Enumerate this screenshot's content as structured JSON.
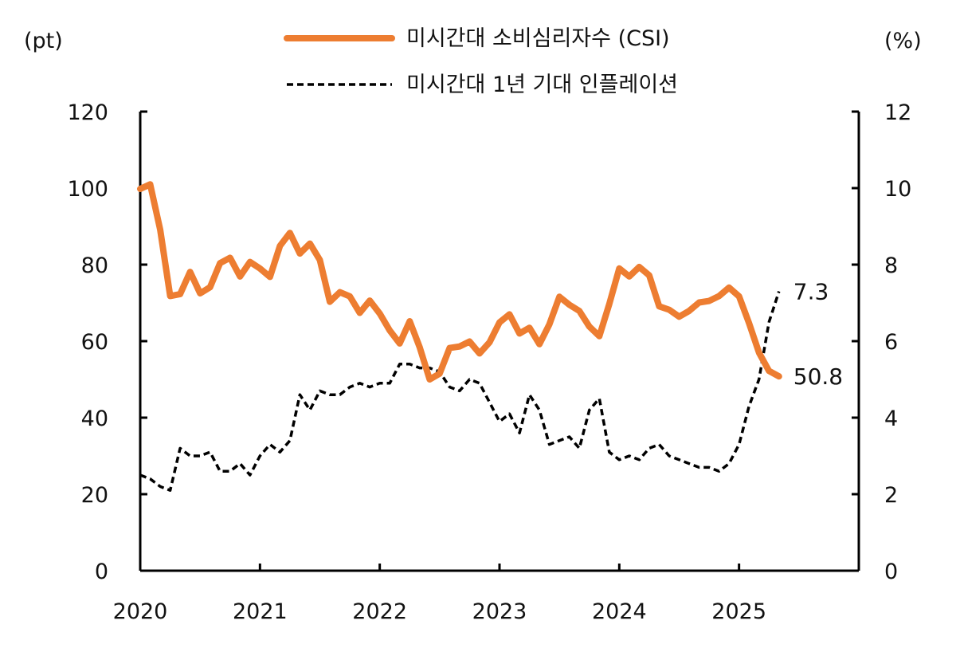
{
  "chart_data": {
    "type": "line",
    "y_left_unit": "(pt)",
    "y_right_unit": "(%)",
    "ylim_left": [
      0,
      120
    ],
    "ylim_right": [
      0,
      12
    ],
    "left_ticks": [
      "0",
      "20",
      "40",
      "60",
      "80",
      "100",
      "120"
    ],
    "right_ticks": [
      "0",
      "2",
      "4",
      "6",
      "8",
      "10",
      "12"
    ],
    "x_ticks": [
      "2020",
      "2021",
      "2022",
      "2023",
      "2024",
      "2025"
    ],
    "grid": false,
    "legend_position": "top-center",
    "series": [
      {
        "name": "미시간대 소비심리자수 (CSI)",
        "axis": "left",
        "color": "#ED7D31",
        "style": "solid",
        "end_label": "50.8",
        "points": [
          [
            "2020-01",
            99.8
          ],
          [
            "2020-02",
            101.0
          ],
          [
            "2020-03",
            89.1
          ],
          [
            "2020-04",
            71.8
          ],
          [
            "2020-05",
            72.3
          ],
          [
            "2020-06",
            78.1
          ],
          [
            "2020-07",
            72.5
          ],
          [
            "2020-08",
            74.1
          ],
          [
            "2020-09",
            80.4
          ],
          [
            "2020-10",
            81.8
          ],
          [
            "2020-11",
            76.9
          ],
          [
            "2020-12",
            80.7
          ],
          [
            "2021-01",
            79.0
          ],
          [
            "2021-02",
            76.8
          ],
          [
            "2021-03",
            84.9
          ],
          [
            "2021-04",
            88.3
          ],
          [
            "2021-05",
            82.9
          ],
          [
            "2021-06",
            85.5
          ],
          [
            "2021-07",
            81.2
          ],
          [
            "2021-08",
            70.3
          ],
          [
            "2021-09",
            72.8
          ],
          [
            "2021-10",
            71.7
          ],
          [
            "2021-11",
            67.4
          ],
          [
            "2021-12",
            70.6
          ],
          [
            "2022-01",
            67.2
          ],
          [
            "2022-02",
            62.8
          ],
          [
            "2022-03",
            59.4
          ],
          [
            "2022-04",
            65.2
          ],
          [
            "2022-05",
            58.4
          ],
          [
            "2022-06",
            50.0
          ],
          [
            "2022-07",
            51.5
          ],
          [
            "2022-08",
            58.2
          ],
          [
            "2022-09",
            58.6
          ],
          [
            "2022-10",
            59.9
          ],
          [
            "2022-11",
            56.8
          ],
          [
            "2022-12",
            59.7
          ],
          [
            "2023-01",
            64.9
          ],
          [
            "2023-02",
            67.0
          ],
          [
            "2023-03",
            62.0
          ],
          [
            "2023-04",
            63.5
          ],
          [
            "2023-05",
            59.2
          ],
          [
            "2023-06",
            64.4
          ],
          [
            "2023-07",
            71.6
          ],
          [
            "2023-08",
            69.5
          ],
          [
            "2023-09",
            67.9
          ],
          [
            "2023-10",
            63.8
          ],
          [
            "2023-11",
            61.3
          ],
          [
            "2023-12",
            69.7
          ],
          [
            "2024-01",
            79.0
          ],
          [
            "2024-02",
            76.9
          ],
          [
            "2024-03",
            79.4
          ],
          [
            "2024-04",
            77.2
          ],
          [
            "2024-05",
            69.1
          ],
          [
            "2024-06",
            68.2
          ],
          [
            "2024-07",
            66.4
          ],
          [
            "2024-08",
            67.9
          ],
          [
            "2024-09",
            70.1
          ],
          [
            "2024-10",
            70.5
          ],
          [
            "2024-11",
            71.8
          ],
          [
            "2024-12",
            74.0
          ],
          [
            "2025-01",
            71.7
          ],
          [
            "2025-02",
            64.7
          ],
          [
            "2025-03",
            57.0
          ],
          [
            "2025-04",
            52.2
          ],
          [
            "2025-05",
            50.8
          ]
        ]
      },
      {
        "name": "미시간대 1년 기대 인플레이션",
        "axis": "right",
        "color": "#000000",
        "style": "dashed",
        "end_label": "7.3",
        "points": [
          [
            "2020-01",
            2.5
          ],
          [
            "2020-02",
            2.4
          ],
          [
            "2020-03",
            2.2
          ],
          [
            "2020-04",
            2.1
          ],
          [
            "2020-05",
            3.2
          ],
          [
            "2020-06",
            3.0
          ],
          [
            "2020-07",
            3.0
          ],
          [
            "2020-08",
            3.1
          ],
          [
            "2020-09",
            2.6
          ],
          [
            "2020-10",
            2.6
          ],
          [
            "2020-11",
            2.8
          ],
          [
            "2020-12",
            2.5
          ],
          [
            "2021-01",
            3.0
          ],
          [
            "2021-02",
            3.3
          ],
          [
            "2021-03",
            3.1
          ],
          [
            "2021-04",
            3.4
          ],
          [
            "2021-05",
            4.6
          ],
          [
            "2021-06",
            4.2
          ],
          [
            "2021-07",
            4.7
          ],
          [
            "2021-08",
            4.6
          ],
          [
            "2021-09",
            4.6
          ],
          [
            "2021-10",
            4.8
          ],
          [
            "2021-11",
            4.9
          ],
          [
            "2021-12",
            4.8
          ],
          [
            "2022-01",
            4.9
          ],
          [
            "2022-02",
            4.9
          ],
          [
            "2022-03",
            5.4
          ],
          [
            "2022-04",
            5.4
          ],
          [
            "2022-05",
            5.3
          ],
          [
            "2022-06",
            5.3
          ],
          [
            "2022-07",
            5.2
          ],
          [
            "2022-08",
            4.8
          ],
          [
            "2022-09",
            4.7
          ],
          [
            "2022-10",
            5.0
          ],
          [
            "2022-11",
            4.9
          ],
          [
            "2022-12",
            4.4
          ],
          [
            "2023-01",
            3.9
          ],
          [
            "2023-02",
            4.1
          ],
          [
            "2023-03",
            3.6
          ],
          [
            "2023-04",
            4.6
          ],
          [
            "2023-05",
            4.2
          ],
          [
            "2023-06",
            3.3
          ],
          [
            "2023-07",
            3.4
          ],
          [
            "2023-08",
            3.5
          ],
          [
            "2023-09",
            3.2
          ],
          [
            "2023-10",
            4.2
          ],
          [
            "2023-11",
            4.5
          ],
          [
            "2023-12",
            3.1
          ],
          [
            "2024-01",
            2.9
          ],
          [
            "2024-02",
            3.0
          ],
          [
            "2024-03",
            2.9
          ],
          [
            "2024-04",
            3.2
          ],
          [
            "2024-05",
            3.3
          ],
          [
            "2024-06",
            3.0
          ],
          [
            "2024-07",
            2.9
          ],
          [
            "2024-08",
            2.8
          ],
          [
            "2024-09",
            2.7
          ],
          [
            "2024-10",
            2.7
          ],
          [
            "2024-11",
            2.6
          ],
          [
            "2024-12",
            2.8
          ],
          [
            "2025-01",
            3.3
          ],
          [
            "2025-02",
            4.3
          ],
          [
            "2025-03",
            5.0
          ],
          [
            "2025-04",
            6.5
          ],
          [
            "2025-05",
            7.3
          ]
        ]
      }
    ]
  }
}
